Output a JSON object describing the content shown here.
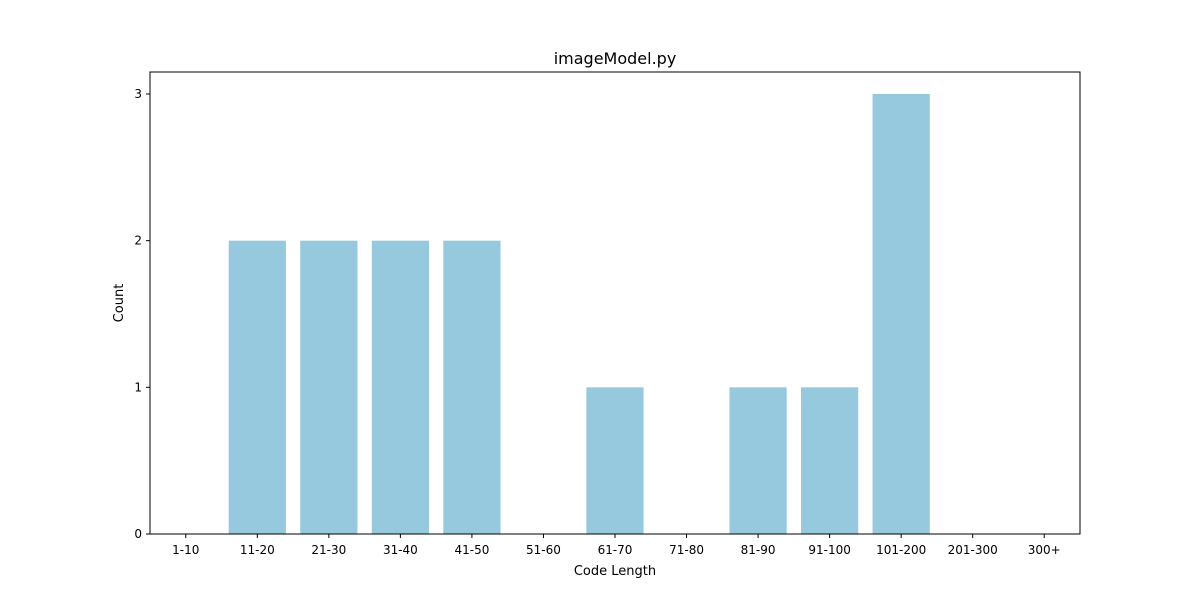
{
  "chart_data": {
    "type": "bar",
    "title": "imageModel.py",
    "xlabel": "Code Length",
    "ylabel": "Count",
    "categories": [
      "1-10",
      "11-20",
      "21-30",
      "31-40",
      "41-50",
      "51-60",
      "61-70",
      "71-80",
      "81-90",
      "91-100",
      "101-200",
      "201-300",
      "300+"
    ],
    "values": [
      0,
      2,
      2,
      2,
      2,
      0,
      1,
      0,
      1,
      1,
      3,
      0,
      0
    ],
    "yticks": [
      0,
      1,
      2,
      3
    ],
    "ylim": [
      0,
      3.15
    ],
    "grid": false,
    "legend": "none",
    "bar_color": "#96c9dd"
  }
}
